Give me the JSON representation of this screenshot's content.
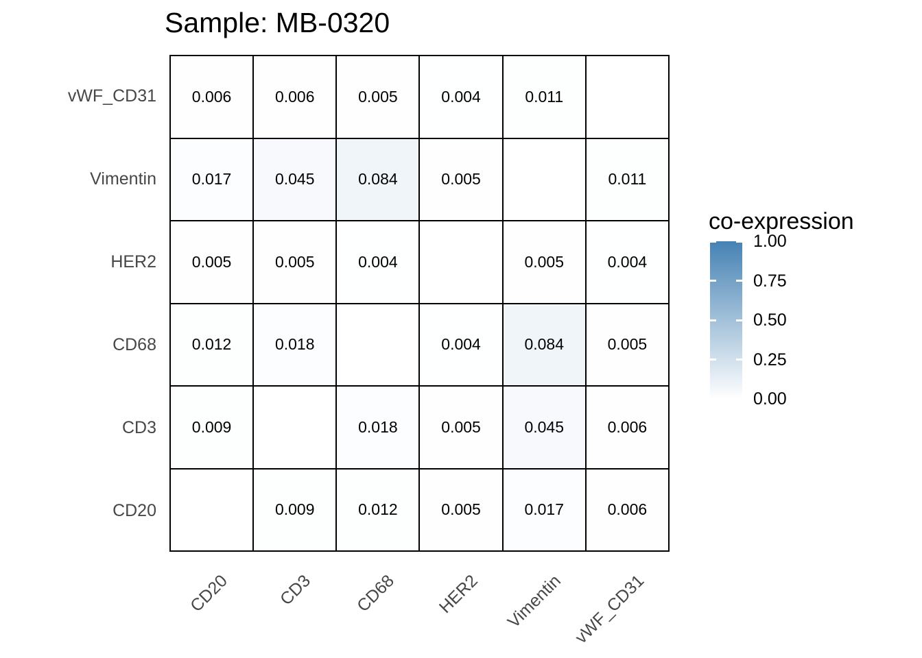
{
  "title": "Sample: MB-0320",
  "chart_data": {
    "type": "heatmap",
    "title": "Sample: MB-0320",
    "rows_top_to_bottom": [
      "vWF_CD31",
      "Vimentin",
      "HER2",
      "CD68",
      "CD3",
      "CD20"
    ],
    "columns_left_to_right": [
      "CD20",
      "CD3",
      "CD68",
      "HER2",
      "Vimentin",
      "vWF_CD31"
    ],
    "matrix": [
      [
        0.006,
        0.006,
        0.005,
        0.004,
        0.011,
        null
      ],
      [
        0.017,
        0.045,
        0.084,
        0.005,
        null,
        0.011
      ],
      [
        0.005,
        0.005,
        0.004,
        null,
        0.005,
        0.004
      ],
      [
        0.012,
        0.018,
        null,
        0.004,
        0.084,
        0.005
      ],
      [
        0.009,
        null,
        0.018,
        0.005,
        0.045,
        0.006
      ],
      [
        null,
        0.009,
        0.012,
        0.005,
        0.017,
        0.006
      ]
    ],
    "cell_label_decimals": 3,
    "diagonal_blank": true,
    "legend_title": "co-expression",
    "legend_ticks": [
      "1.00",
      "0.75",
      "0.50",
      "0.25",
      "0.00"
    ],
    "colorscale": {
      "low": "#FFFFFF",
      "high": "#4682B4",
      "domain": [
        0,
        1
      ]
    },
    "grid_line_color": "#000000",
    "axis_text_color": "#474747",
    "title_color": "#000000",
    "grid_on": true,
    "legend_position": "right"
  }
}
